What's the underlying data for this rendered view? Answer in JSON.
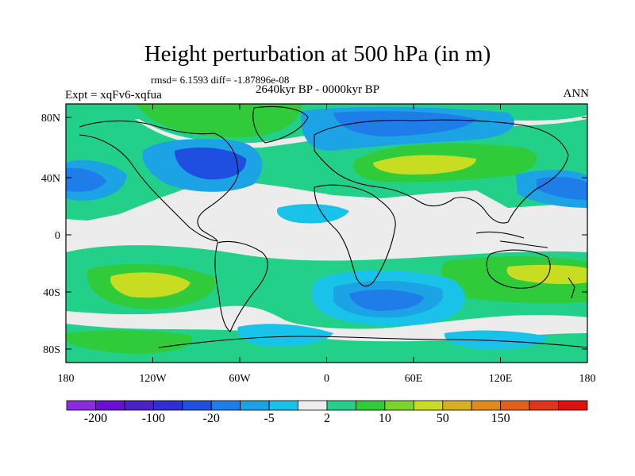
{
  "title": "Height perturbation at 500 hPa (in m)",
  "stats": "rmsd= 6.1593 diff= -1.87896e-08",
  "period": "2640kyr BP - 0000kyr BP",
  "experiment": "Expt = xqFv6-xqfua",
  "season": "ANN",
  "lat_ticks": [
    "80N",
    "40N",
    "0",
    "40S",
    "80S"
  ],
  "lon_ticks": [
    "180",
    "120W",
    "60W",
    "0",
    "60E",
    "120E",
    "180"
  ],
  "colorbar": {
    "labels": [
      "-200",
      "-100",
      "-20",
      "-5",
      "2",
      "10",
      "50",
      "150"
    ],
    "colors": [
      "#8a2be2",
      "#6a0fd8",
      "#4b1fc9",
      "#2e2fd6",
      "#1f4fe0",
      "#1e7de8",
      "#1ca3e6",
      "#19c2e8",
      "#ececec",
      "#22d08a",
      "#2fcb3a",
      "#7ad42a",
      "#c8dc22",
      "#d8b01e",
      "#e08a1c",
      "#e2601a",
      "#e2341a",
      "#e0100f"
    ]
  },
  "palette": {
    "neutral": "#ececec",
    "cyan": "#19c2e8",
    "lightblue": "#1ca3e6",
    "blue": "#1e7de8",
    "deepblue": "#1f4fe0",
    "teal": "#22d08a",
    "green": "#2fcb3a",
    "yellowgreen": "#c8dc22"
  }
}
